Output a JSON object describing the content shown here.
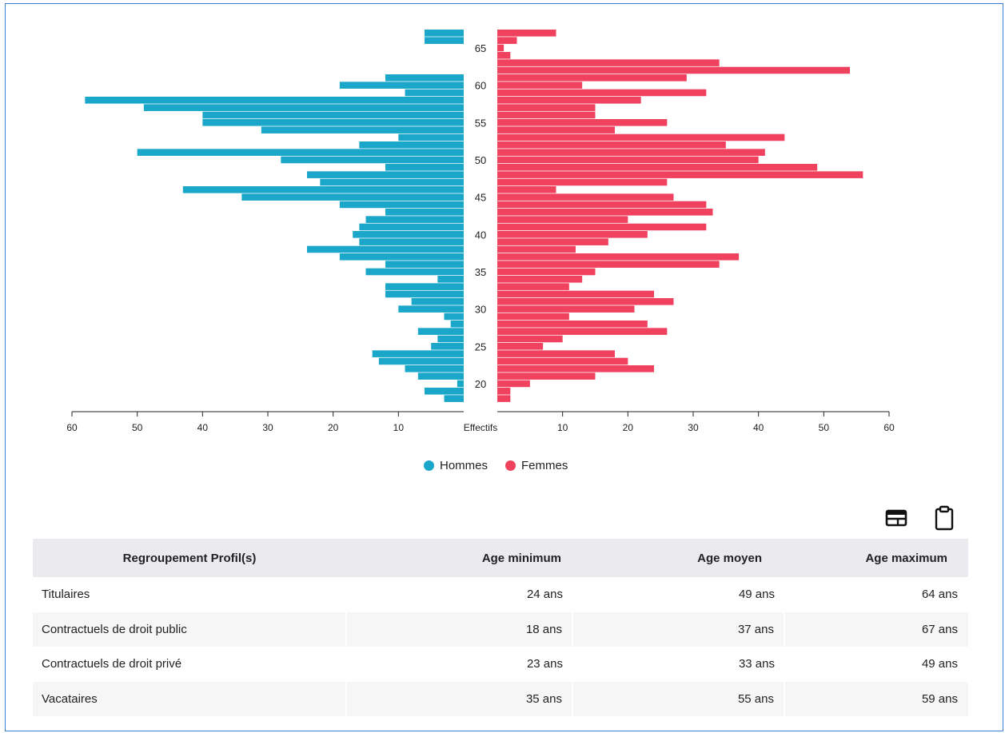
{
  "chart_data": {
    "type": "bar",
    "subtype": "population-pyramid",
    "orientation": "horizontal",
    "ages": [
      67,
      66,
      65,
      64,
      63,
      62,
      61,
      60,
      59,
      58,
      57,
      56,
      55,
      54,
      53,
      52,
      51,
      50,
      49,
      48,
      47,
      46,
      45,
      44,
      43,
      42,
      41,
      40,
      39,
      38,
      37,
      36,
      35,
      34,
      33,
      32,
      31,
      30,
      29,
      28,
      27,
      26,
      25,
      24,
      23,
      22,
      21,
      20,
      19,
      18
    ],
    "series": [
      {
        "name": "Hommes",
        "color": "#1ba7c9",
        "side": "left",
        "values": [
          6,
          6,
          0,
          0,
          0,
          0,
          12,
          19,
          9,
          58,
          49,
          40,
          40,
          31,
          10,
          16,
          50,
          28,
          12,
          24,
          22,
          43,
          34,
          19,
          12,
          15,
          16,
          17,
          16,
          24,
          19,
          12,
          15,
          4,
          12,
          12,
          8,
          10,
          3,
          2,
          7,
          4,
          5,
          14,
          13,
          9,
          7,
          1,
          6,
          3
        ]
      },
      {
        "name": "Femmes",
        "color": "#f0425f",
        "side": "right",
        "values": [
          9,
          3,
          1,
          2,
          34,
          54,
          29,
          13,
          32,
          22,
          15,
          15,
          26,
          18,
          44,
          35,
          41,
          40,
          49,
          56,
          26,
          9,
          27,
          32,
          33,
          20,
          32,
          23,
          17,
          12,
          37,
          34,
          15,
          13,
          11,
          24,
          27,
          21,
          11,
          23,
          26,
          10,
          7,
          18,
          20,
          24,
          15,
          5,
          2,
          2
        ]
      }
    ],
    "y_tick_labels": [
      "65",
      "60",
      "55",
      "50",
      "45",
      "40",
      "35",
      "30",
      "25",
      "20"
    ],
    "x_tick_labels_left": [
      "60",
      "50",
      "40",
      "30",
      "20",
      "10"
    ],
    "x_tick_labels_right": [
      "10",
      "20",
      "30",
      "40",
      "50",
      "60"
    ],
    "xlim": [
      0,
      60
    ],
    "center_label": "Effectifs",
    "legend": {
      "position": "bottom-center",
      "items": [
        "Hommes",
        "Femmes"
      ]
    },
    "grid": false
  },
  "toolbar": {
    "icons": [
      "table-view-icon",
      "clipboard-icon"
    ]
  },
  "table": {
    "headers": [
      "Regroupement Profil(s)",
      "Age minimum",
      "Age moyen",
      "Age maximum"
    ],
    "rows": [
      [
        "Titulaires",
        "24 ans",
        "49 ans",
        "64 ans"
      ],
      [
        "Contractuels de droit public",
        "18 ans",
        "37 ans",
        "67 ans"
      ],
      [
        "Contractuels de droit privé",
        "23 ans",
        "33 ans",
        "49 ans"
      ],
      [
        "Vacataires",
        "35 ans",
        "55 ans",
        "59 ans"
      ]
    ]
  }
}
